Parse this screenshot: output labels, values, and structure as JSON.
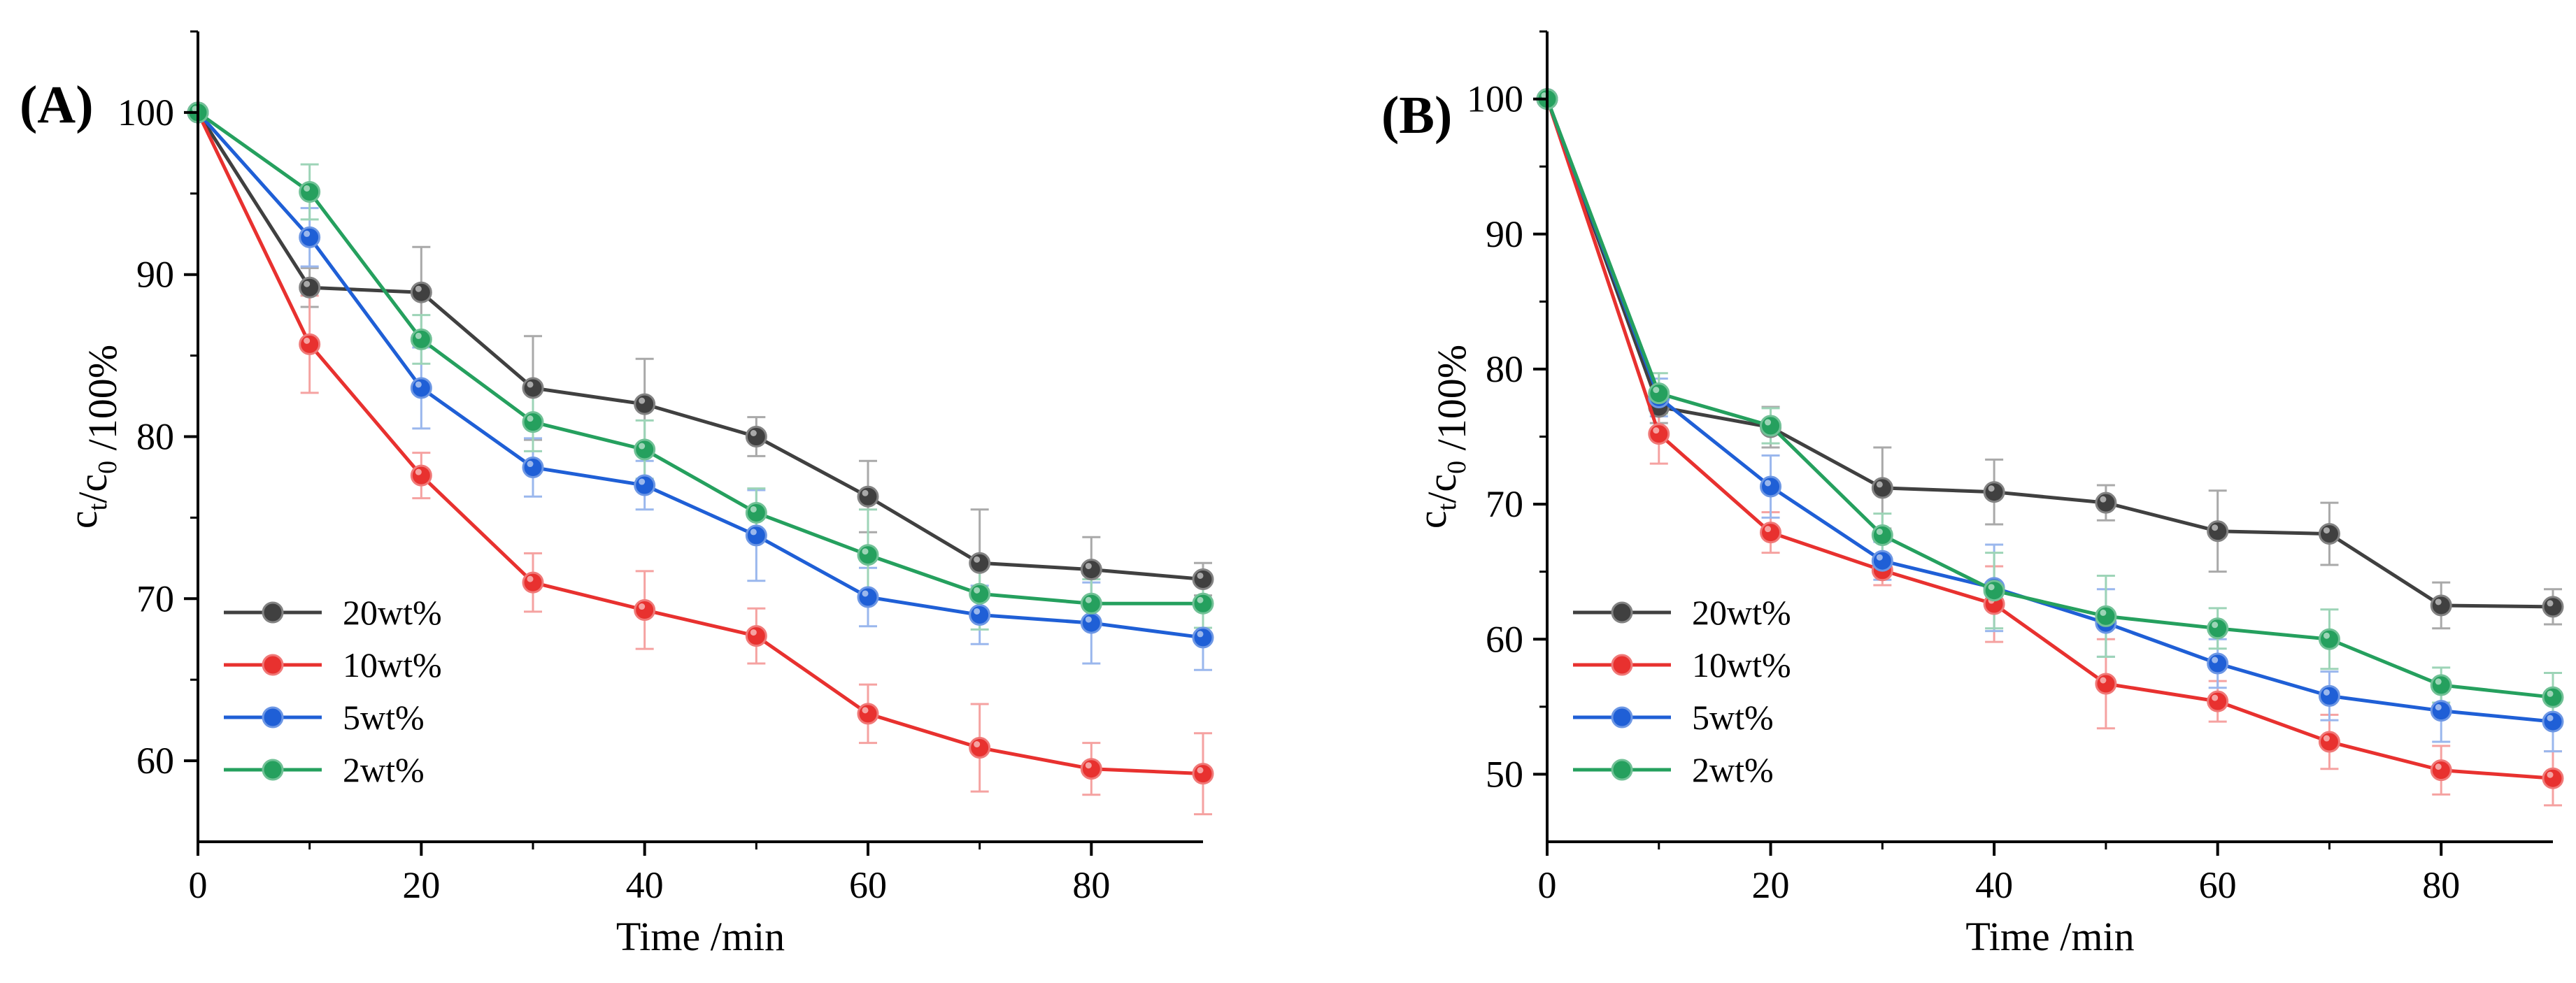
{
  "chart_data": [
    {
      "type": "line",
      "panel_label": "(A)",
      "xlabel": "Time /min",
      "ylabel": "c_t/c_0 /100%",
      "xlim": [
        0,
        90
      ],
      "ylim": [
        55,
        105
      ],
      "xticks": [
        0,
        20,
        40,
        60,
        80
      ],
      "yticks": [
        60,
        70,
        80,
        90,
        100
      ],
      "grid": false,
      "legend_position": "bottom-left",
      "x": [
        0,
        10,
        20,
        30,
        40,
        50,
        60,
        70,
        80,
        90
      ],
      "series": [
        {
          "name": "20wt%",
          "color": "#404040",
          "values": [
            100,
            89.2,
            88.9,
            83.0,
            82.0,
            80.0,
            76.3,
            72.2,
            71.8,
            71.2
          ],
          "errors": [
            0,
            1.2,
            2.8,
            3.2,
            2.8,
            1.2,
            2.2,
            3.3,
            2.0,
            1.0
          ]
        },
        {
          "name": "10wt%",
          "color": "#e8312f",
          "values": [
            100,
            85.7,
            77.6,
            71.0,
            69.3,
            67.7,
            62.9,
            60.8,
            59.5,
            59.2
          ],
          "errors": [
            0,
            3.0,
            1.4,
            1.8,
            2.4,
            1.7,
            1.8,
            2.7,
            1.6,
            2.5
          ]
        },
        {
          "name": "5wt%",
          "color": "#1f5fd6",
          "values": [
            100,
            92.3,
            83.0,
            78.1,
            77.0,
            73.9,
            70.1,
            69.0,
            68.5,
            67.6
          ],
          "errors": [
            0,
            1.8,
            2.5,
            1.8,
            1.5,
            2.8,
            1.8,
            1.8,
            2.5,
            2.0
          ]
        },
        {
          "name": "2wt%",
          "color": "#25a05e",
          "values": [
            100,
            95.1,
            86.0,
            80.9,
            79.2,
            75.3,
            72.7,
            70.3,
            69.7,
            69.7
          ],
          "errors": [
            0,
            1.7,
            1.5,
            1.8,
            1.8,
            1.5,
            2.8,
            2.2,
            1.5,
            1.5
          ]
        }
      ]
    },
    {
      "type": "line",
      "panel_label": "(B)",
      "xlabel": "Time /min",
      "ylabel": "c_t/c_0 /100%",
      "xlim": [
        0,
        90
      ],
      "ylim": [
        45,
        105
      ],
      "xticks": [
        0,
        20,
        40,
        60,
        80
      ],
      "yticks": [
        50,
        60,
        70,
        80,
        90,
        100
      ],
      "grid": false,
      "legend_position": "bottom-left",
      "x": [
        0,
        10,
        20,
        30,
        40,
        50,
        60,
        70,
        80,
        90
      ],
      "series": [
        {
          "name": "20wt%",
          "color": "#404040",
          "values": [
            100,
            77.2,
            75.7,
            71.2,
            70.9,
            70.1,
            68.0,
            67.8,
            62.5,
            62.4
          ],
          "errors": [
            0,
            1.2,
            1.5,
            3.0,
            2.4,
            1.3,
            3.0,
            2.3,
            1.7,
            1.3
          ]
        },
        {
          "name": "10wt%",
          "color": "#e8312f",
          "values": [
            100,
            75.2,
            67.9,
            65.1,
            62.6,
            56.7,
            55.4,
            52.4,
            50.3,
            49.7
          ],
          "errors": [
            0,
            2.2,
            1.5,
            1.1,
            2.8,
            3.3,
            1.5,
            2.0,
            1.8,
            2.0
          ]
        },
        {
          "name": "5wt%",
          "color": "#1f5fd6",
          "values": [
            100,
            77.9,
            71.3,
            65.8,
            63.8,
            61.2,
            58.2,
            55.8,
            54.7,
            53.9
          ],
          "errors": [
            0,
            1.4,
            2.3,
            1.4,
            3.2,
            2.5,
            1.8,
            1.8,
            2.3,
            2.2
          ]
        },
        {
          "name": "2wt%",
          "color": "#25a05e",
          "values": [
            100,
            78.2,
            75.8,
            67.7,
            63.6,
            61.7,
            60.8,
            60.0,
            56.6,
            55.7
          ],
          "errors": [
            0,
            1.5,
            1.3,
            1.6,
            2.8,
            3.0,
            1.5,
            2.2,
            1.3,
            1.8
          ]
        }
      ]
    }
  ]
}
